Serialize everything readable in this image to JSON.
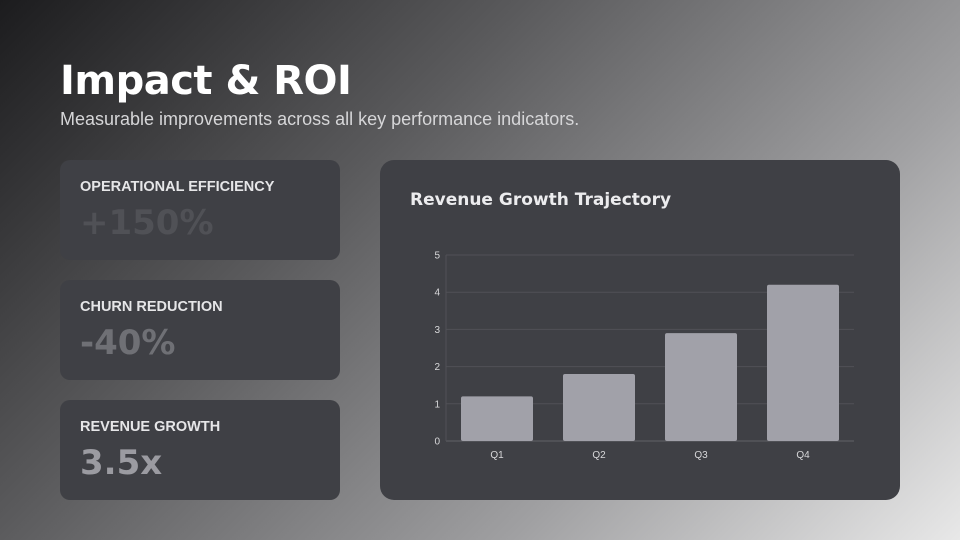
{
  "header": {
    "title": "Impact & ROI",
    "subtitle": "Measurable improvements across all key performance indicators."
  },
  "metrics": [
    {
      "label": "OPERATIONAL EFFICIENCY",
      "value": "+150%",
      "color": "#505156"
    },
    {
      "label": "CHURN REDUCTION",
      "value": "-40%",
      "color": "#6f7075"
    },
    {
      "label": "REVENUE GROWTH",
      "value": "3.5x",
      "color": "#9b9ba1"
    }
  ],
  "chart_data": {
    "type": "bar",
    "title": "Revenue Growth Trajectory",
    "categories": [
      "Q1",
      "Q2",
      "Q3",
      "Q4"
    ],
    "values": [
      1.2,
      1.8,
      2.9,
      4.2
    ],
    "ylim": [
      0,
      5
    ],
    "yticks": [
      0,
      1,
      2,
      3,
      4,
      5
    ],
    "grid": true,
    "bar_color": "#a1a1a9"
  }
}
